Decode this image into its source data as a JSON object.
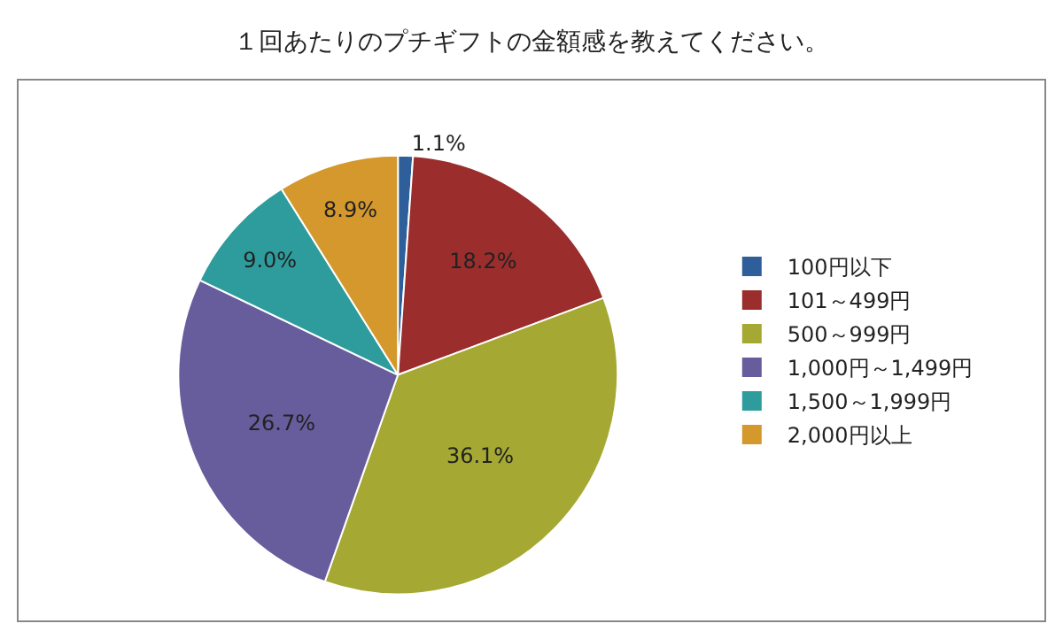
{
  "chart_data": {
    "type": "pie",
    "title": "１回あたりのプチギフトの金額感を教えてください。",
    "categories": [
      "100円以下",
      "101～499円",
      "500～999円",
      "1,000円～1,499円",
      "1,500～1,999円",
      "2,000円以上"
    ],
    "values": [
      1.1,
      18.2,
      36.1,
      26.7,
      9.0,
      8.9
    ],
    "value_labels": [
      "1.1%",
      "18.2%",
      "36.1%",
      "26.7%",
      "9.0%",
      "8.9%"
    ],
    "colors": [
      "#2e5f9a",
      "#9b2d2d",
      "#a5a832",
      "#675c9c",
      "#2e9c9c",
      "#d4982c"
    ],
    "legend": "right"
  }
}
